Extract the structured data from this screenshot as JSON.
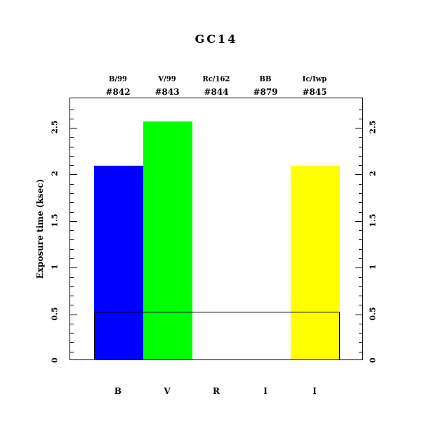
{
  "chart_data": {
    "type": "bar",
    "title": "GC14",
    "ylabel": "Exposure time (ksec)",
    "xlabel": "",
    "categories": [
      "B",
      "V",
      "R",
      "I",
      "I"
    ],
    "top_labels": [
      {
        "filter": "B/99",
        "id": "#842"
      },
      {
        "filter": "V/99",
        "id": "#843"
      },
      {
        "filter": "Rc/162",
        "id": "#844"
      },
      {
        "filter": "BB",
        "id": "#879"
      },
      {
        "filter": "Ic/Iwp",
        "id": "#845"
      }
    ],
    "series": [
      {
        "name": "exposure_time_ksec",
        "values": [
          2.08,
          2.55,
          0,
          0,
          2.08
        ],
        "colors": [
          "#0000ff",
          "#00ff00",
          "none",
          "none",
          "#ffff00"
        ]
      }
    ],
    "outline_bar": {
      "value": 0.51,
      "spans": "all-slots",
      "fill": "none",
      "stroke": "#000000"
    },
    "yticks": [
      0,
      0.5,
      1,
      1.5,
      2,
      2.5
    ],
    "ytick_labels": [
      "0",
      "0.5",
      "1",
      "1.5",
      "2",
      "2.5"
    ],
    "minor_tick_step": 0.1,
    "ylim": [
      0,
      2.817
    ],
    "grid": false,
    "legend": "none",
    "axis_color": "#000000",
    "background_color": "#ffffff"
  }
}
